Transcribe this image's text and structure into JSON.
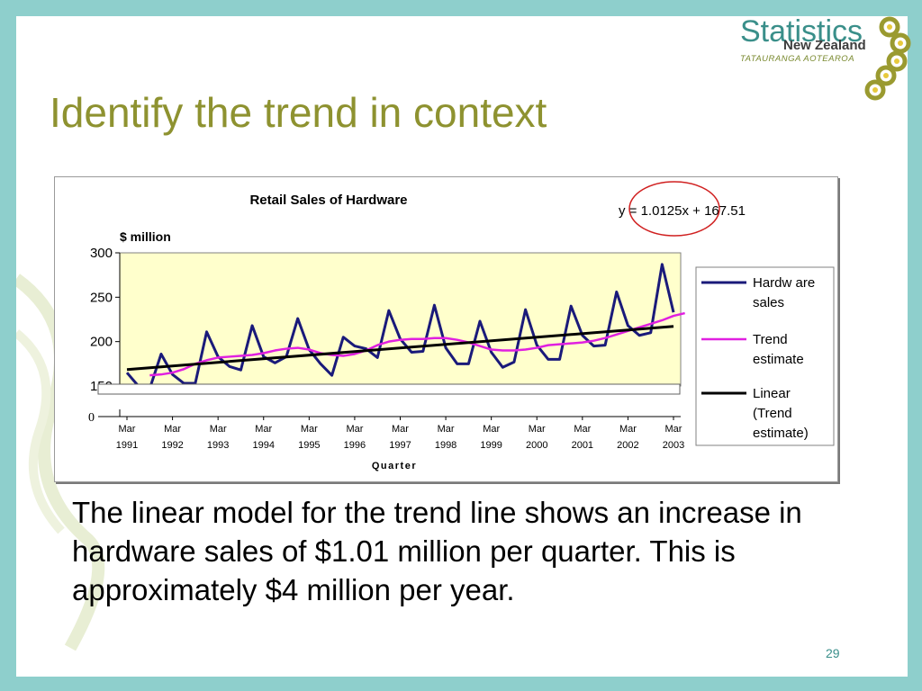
{
  "slide": {
    "title": "Identify the trend in context",
    "body": "The linear model for the trend line shows an increase in hardware sales of $1.01 million per quarter. This is approximately $4 million per year.",
    "page_number": "29",
    "logo": {
      "main": "Statistics",
      "sub": "New Zealand",
      "maori": "TATAURANGA AOTEAROA"
    },
    "colors": {
      "background_teal": "#8ecfcc",
      "title_olive": "#8e9230",
      "plot_area": "#ffffcc"
    }
  },
  "chart_data": {
    "type": "line",
    "title": "Retail Sales of Hardware",
    "ylabel": "$ million",
    "xlabel": "Quarter",
    "equation": "y = 1.0125x + 167.51",
    "ylim": [
      150,
      300
    ],
    "axis_break_label": "0",
    "yticks": [
      "300",
      "250",
      "200",
      "150"
    ],
    "ytick_values": [
      300,
      250,
      200,
      150
    ],
    "x_ticks": [
      {
        "line1": "Mar",
        "line2": "1991",
        "q": 1
      },
      {
        "line1": "Mar",
        "line2": "1992",
        "q": 5
      },
      {
        "line1": "Mar",
        "line2": "1993",
        "q": 9
      },
      {
        "line1": "Mar",
        "line2": "1994",
        "q": 13
      },
      {
        "line1": "Mar",
        "line2": "1995",
        "q": 17
      },
      {
        "line1": "Mar",
        "line2": "1996",
        "q": 21
      },
      {
        "line1": "Mar",
        "line2": "1997",
        "q": 25
      },
      {
        "line1": "Mar",
        "line2": "1998",
        "q": 29
      },
      {
        "line1": "Mar",
        "line2": "1999",
        "q": 33
      },
      {
        "line1": "Mar",
        "line2": "2000",
        "q": 37
      },
      {
        "line1": "Mar",
        "line2": "2001",
        "q": 41
      },
      {
        "line1": "Mar",
        "line2": "2002",
        "q": 45
      },
      {
        "line1": "Mar",
        "line2": "2003",
        "q": 49
      }
    ],
    "legend_position": "right",
    "series": [
      {
        "name": "Hardware sales",
        "legend_lines": [
          "Hardw are",
          "sales"
        ],
        "color": "#1a1a7a",
        "x_start": 1,
        "values": [
          165,
          150,
          147,
          186,
          163,
          153,
          153,
          211,
          183,
          172,
          168,
          218,
          183,
          176,
          183,
          226,
          191,
          175,
          162,
          205,
          195,
          192,
          182,
          235,
          203,
          188,
          189,
          241,
          193,
          175,
          175,
          223,
          188,
          171,
          177,
          236,
          196,
          180,
          180,
          240,
          207,
          195,
          196,
          256,
          218,
          207,
          210,
          287,
          233
        ]
      },
      {
        "name": "Trend estimate",
        "legend_lines": [
          "Trend",
          "estimate"
        ],
        "color": "#e020e0",
        "x_start": 3,
        "values": [
          162,
          163,
          165,
          169,
          175,
          179,
          182,
          183,
          184,
          185,
          187,
          190,
          192,
          193,
          191,
          187,
          185,
          184,
          186,
          190,
          196,
          200,
          202,
          203,
          203,
          204,
          204,
          202,
          199,
          195,
          191,
          190,
          190,
          191,
          193,
          196,
          197,
          198,
          199,
          201,
          204,
          208,
          212,
          216,
          220,
          224,
          229,
          232
        ]
      },
      {
        "name": "Linear (Trend estimate)",
        "legend_lines": [
          "Linear",
          "(Trend",
          "estimate)"
        ],
        "color": "#000000",
        "x_start": 1,
        "x_end": 49,
        "slope": 1.0125,
        "intercept": 167.51
      }
    ]
  }
}
